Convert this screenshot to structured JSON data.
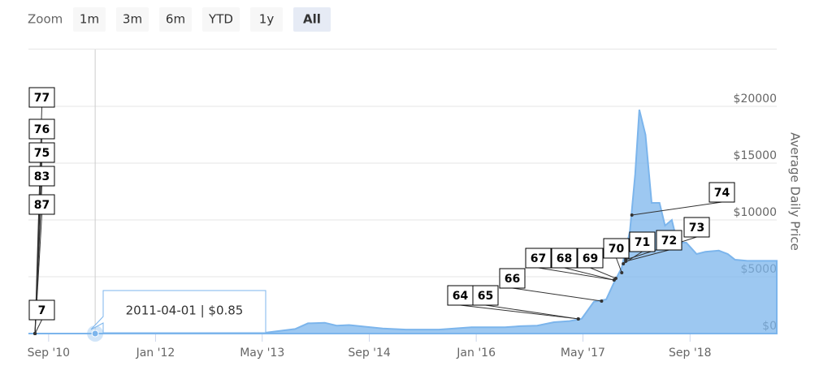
{
  "chart_data": {
    "type": "area",
    "range_selector": {
      "label": "Zoom",
      "buttons": [
        {
          "label": "1m"
        },
        {
          "label": "3m"
        },
        {
          "label": "6m"
        },
        {
          "label": "YTD"
        },
        {
          "label": "1y"
        },
        {
          "label": "All",
          "selected": true
        }
      ]
    },
    "y_axis_label": "Average Daily Price",
    "xlim": [
      "2010-06-01",
      "2019-10-01"
    ],
    "xticks": [
      {
        "value": "2010-09-01",
        "label": "Sep '10"
      },
      {
        "value": "2012-01-01",
        "label": "Jan '12"
      },
      {
        "value": "2013-05-01",
        "label": "May '13"
      },
      {
        "value": "2014-09-01",
        "label": "Sep '14"
      },
      {
        "value": "2016-01-01",
        "label": "Jan '16"
      },
      {
        "value": "2017-05-01",
        "label": "May '17"
      },
      {
        "value": "2018-09-01",
        "label": "Sep '18"
      }
    ],
    "ylim": [
      0,
      25000
    ],
    "yticks": [
      {
        "value": 0,
        "label": "$0"
      },
      {
        "value": 5000,
        "label": "$5000"
      },
      {
        "value": 10000,
        "label": "$10000"
      },
      {
        "value": 15000,
        "label": "$15000"
      },
      {
        "value": 20000,
        "label": "$20000"
      }
    ],
    "grid": true,
    "series": [
      {
        "name": "Average Daily Price",
        "color": "#7cb5ec",
        "x": [
          "2010-06-01",
          "2011-04-01",
          "2011-12-15",
          "2013-05-25",
          "2013-09-28",
          "2013-11-25",
          "2014-02-10",
          "2014-04-05",
          "2014-06-01",
          "2014-08-15",
          "2014-11-01",
          "2015-02-15",
          "2015-07-15",
          "2015-12-10",
          "2016-05-10",
          "2016-07-20",
          "2016-10-05",
          "2016-12-20",
          "2017-03-01",
          "2017-04-25",
          "2017-06-20",
          "2017-08-15",
          "2017-09-20",
          "2017-10-25",
          "2017-12-01",
          "2017-12-25",
          "2018-01-13",
          "2018-02-10",
          "2018-03-10",
          "2018-04-15",
          "2018-05-10",
          "2018-06-10",
          "2018-07-05",
          "2018-08-15",
          "2018-10-01",
          "2018-11-10",
          "2019-01-10",
          "2019-02-20",
          "2019-03-25",
          "2019-05-20",
          "2019-10-01"
        ],
        "values": [
          0,
          0.85,
          10,
          100,
          400,
          900,
          950,
          700,
          750,
          600,
          450,
          350,
          350,
          550,
          550,
          650,
          700,
          1000,
          1100,
          1300,
          2800,
          3000,
          4500,
          5800,
          9000,
          14000,
          19700,
          17500,
          11500,
          11500,
          9500,
          10000,
          8000,
          8000,
          7000,
          7200,
          7300,
          7000,
          6500,
          6400,
          6400
        ]
      }
    ],
    "tooltip": {
      "text": "2011-04-01 | $0.85"
    },
    "flags": [
      {
        "label": "64",
        "x": "2017-04-10",
        "y": 1290
      },
      {
        "label": "65",
        "x": "2017-04-10",
        "y": 1290
      },
      {
        "label": "66",
        "x": "2017-07-25",
        "y": 2860
      },
      {
        "label": "67",
        "x": "2017-09-20",
        "y": 4710
      },
      {
        "label": "68",
        "x": "2017-09-20",
        "y": 4710
      },
      {
        "label": "69",
        "x": "2017-09-28",
        "y": 4860
      },
      {
        "label": "70",
        "x": "2017-10-25",
        "y": 5360
      },
      {
        "label": "71",
        "x": "2017-11-01",
        "y": 6140
      },
      {
        "label": "72",
        "x": "2017-11-12",
        "y": 6360
      },
      {
        "label": "73",
        "x": "2017-11-12",
        "y": 6500
      },
      {
        "label": "74",
        "x": "2017-12-10",
        "y": 10430
      },
      {
        "label": "77",
        "x": "2010-07-01",
        "y": 0
      },
      {
        "label": "76",
        "x": "2010-07-01",
        "y": 0
      },
      {
        "label": "75",
        "x": "2010-07-01",
        "y": 0
      },
      {
        "label": "83",
        "x": "2010-07-01",
        "y": 0
      },
      {
        "label": "87",
        "x": "2010-07-01",
        "y": 0
      },
      {
        "label": "7",
        "x": "2010-07-01",
        "y": 0
      }
    ]
  }
}
